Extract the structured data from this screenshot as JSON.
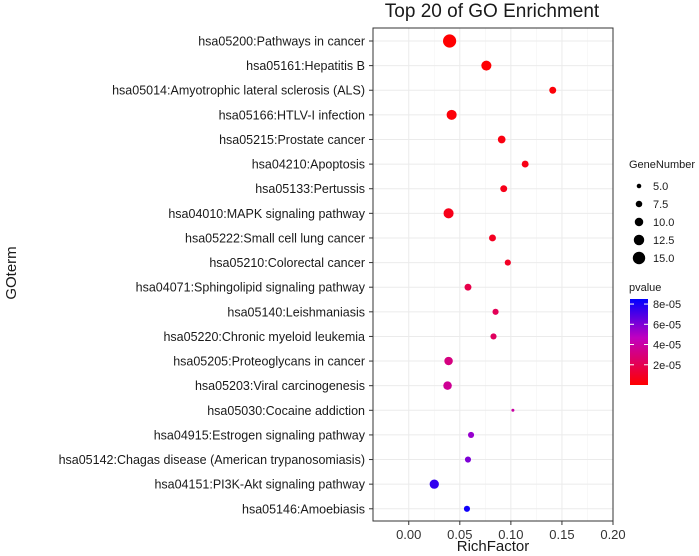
{
  "chart_data": {
    "type": "scatter",
    "title": "Top 20 of GO Enrichment",
    "xlabel": "RichFactor",
    "ylabel": "GOterm",
    "xlim": [
      -0.035,
      0.2
    ],
    "x_ticks": [
      "0.00",
      "0.05",
      "0.10",
      "0.15",
      "0.20"
    ],
    "x_tick_values": [
      0.0,
      0.05,
      0.1,
      0.15,
      0.2
    ],
    "grid": true,
    "categories": [
      "hsa05200:Pathways in cancer",
      "hsa05161:Hepatitis B",
      "hsa05014:Amyotrophic lateral sclerosis (ALS)",
      "hsa05166:HTLV-I infection",
      "hsa05215:Prostate cancer",
      "hsa04210:Apoptosis",
      "hsa05133:Pertussis",
      "hsa04010:MAPK signaling pathway",
      "hsa05222:Small cell lung cancer",
      "hsa05210:Colorectal cancer",
      "hsa04071:Sphingolipid signaling pathway",
      "hsa05140:Leishmaniasis",
      "hsa05220:Chronic myeloid leukemia",
      "hsa05205:Proteoglycans in cancer",
      "hsa05203:Viral carcinogenesis",
      "hsa05030:Cocaine addiction",
      "hsa04915:Estrogen signaling pathway",
      "hsa05142:Chagas disease (American trypanosomiasis)",
      "hsa04151:PI3K-Akt signaling pathway",
      "hsa05146:Amoebiasis"
    ],
    "rich_factor": [
      0.04,
      0.076,
      0.141,
      0.042,
      0.091,
      0.114,
      0.093,
      0.039,
      0.082,
      0.097,
      0.058,
      0.085,
      0.083,
      0.039,
      0.038,
      0.102,
      0.061,
      0.058,
      0.025,
      0.057
    ],
    "gene_number": [
      16,
      12,
      8,
      12,
      9,
      8,
      8,
      12,
      8,
      7,
      8,
      7,
      7,
      10,
      10,
      3,
      7,
      7,
      11,
      7
    ],
    "pvalue": [
      3e-07,
      1e-06,
      2e-06,
      2e-06,
      4e-06,
      5e-06,
      6e-06,
      6e-06,
      8e-06,
      9e-06,
      1.8e-05,
      2.1e-05,
      2.3e-05,
      3.1e-05,
      3.6e-05,
      4e-05,
      5.5e-05,
      6e-05,
      7.5e-05,
      8.2e-05
    ],
    "legend_size": {
      "title": "GeneNumber",
      "labels": [
        "5.0",
        "7.5",
        "10.0",
        "12.5",
        "15.0"
      ],
      "values": [
        5.0,
        7.5,
        10.0,
        12.5,
        15.0
      ]
    },
    "legend_color": {
      "title": "pvalue",
      "labels": [
        "8e-05",
        "6e-05",
        "4e-05",
        "2e-05"
      ],
      "values": [
        8e-05,
        6e-05,
        4e-05,
        2e-05
      ],
      "range": [
        0.0,
        8.5e-05
      ],
      "low_color": "#ff0000",
      "high_color": "#0000ff"
    },
    "colors": {
      "panel_background": "#ffffff",
      "grid": "#ebebeb",
      "panel_border": "#333333"
    }
  }
}
